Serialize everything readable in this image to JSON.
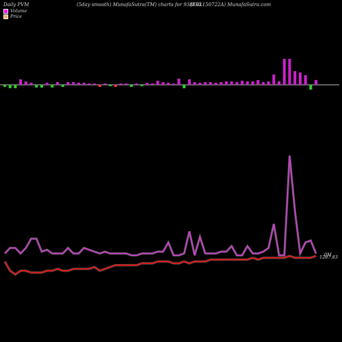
{
  "header": {
    "left": "Daily PVM",
    "center": "(5day smooth) MunafaSutra(TM) charts for 938103",
    "right": "(EBL150722A) MunafaSutra.com"
  },
  "legend": [
    {
      "label": "Volume",
      "color": "#ff00ff"
    },
    {
      "label": "Price",
      "color": "#ffaa66"
    }
  ],
  "chart_data": {
    "type": "line",
    "bar_colors": {
      "up": "#cc22cc",
      "down": "#33cc33",
      "neutral": "#ff3333"
    },
    "volume_bars": [
      {
        "value": 3,
        "dir": "down"
      },
      {
        "value": 5,
        "dir": "down"
      },
      {
        "value": 5,
        "dir": "down"
      },
      {
        "value": 8,
        "dir": "up"
      },
      {
        "value": 5,
        "dir": "up"
      },
      {
        "value": 3,
        "dir": "up"
      },
      {
        "value": 4,
        "dir": "down"
      },
      {
        "value": 4,
        "dir": "down"
      },
      {
        "value": 3,
        "dir": "up"
      },
      {
        "value": 4,
        "dir": "down"
      },
      {
        "value": 4,
        "dir": "up"
      },
      {
        "value": 3,
        "dir": "down"
      },
      {
        "value": 4,
        "dir": "up"
      },
      {
        "value": 4,
        "dir": "up"
      },
      {
        "value": 3,
        "dir": "up"
      },
      {
        "value": 3,
        "dir": "up"
      },
      {
        "value": 2,
        "dir": "up"
      },
      {
        "value": 2,
        "dir": "up"
      },
      {
        "value": 3,
        "dir": "neutral"
      },
      {
        "value": 2,
        "dir": "up"
      },
      {
        "value": 2,
        "dir": "down"
      },
      {
        "value": 3,
        "dir": "neutral"
      },
      {
        "value": 2,
        "dir": "up"
      },
      {
        "value": 2,
        "dir": "up"
      },
      {
        "value": 3,
        "dir": "down"
      },
      {
        "value": 2,
        "dir": "up"
      },
      {
        "value": 2,
        "dir": "down"
      },
      {
        "value": 3,
        "dir": "up"
      },
      {
        "value": 2,
        "dir": "up"
      },
      {
        "value": 6,
        "dir": "up"
      },
      {
        "value": 4,
        "dir": "up"
      },
      {
        "value": 3,
        "dir": "up"
      },
      {
        "value": 2,
        "dir": "up"
      },
      {
        "value": 9,
        "dir": "up"
      },
      {
        "value": 5,
        "dir": "down"
      },
      {
        "value": 8,
        "dir": "up"
      },
      {
        "value": 4,
        "dir": "up"
      },
      {
        "value": 3,
        "dir": "up"
      },
      {
        "value": 4,
        "dir": "up"
      },
      {
        "value": 4,
        "dir": "up"
      },
      {
        "value": 3,
        "dir": "up"
      },
      {
        "value": 4,
        "dir": "up"
      },
      {
        "value": 5,
        "dir": "up"
      },
      {
        "value": 5,
        "dir": "up"
      },
      {
        "value": 4,
        "dir": "up"
      },
      {
        "value": 6,
        "dir": "up"
      },
      {
        "value": 5,
        "dir": "up"
      },
      {
        "value": 5,
        "dir": "up"
      },
      {
        "value": 7,
        "dir": "up"
      },
      {
        "value": 4,
        "dir": "up"
      },
      {
        "value": 5,
        "dir": "up"
      },
      {
        "value": 15,
        "dir": "up"
      },
      {
        "value": 5,
        "dir": "up"
      },
      {
        "value": 38,
        "dir": "up"
      },
      {
        "value": 38,
        "dir": "up"
      },
      {
        "value": 20,
        "dir": "up"
      },
      {
        "value": 18,
        "dir": "up"
      },
      {
        "value": 14,
        "dir": "up"
      },
      {
        "value": 7,
        "dir": "down"
      },
      {
        "value": 7,
        "dir": "up"
      }
    ],
    "volume_line": [
      2,
      5,
      5,
      2,
      5,
      10,
      10,
      3,
      4,
      2,
      2,
      2,
      5,
      2,
      2,
      5,
      4,
      3,
      2,
      3,
      2,
      2,
      2,
      2,
      1,
      1,
      2,
      2,
      2,
      3,
      3,
      8,
      1,
      1,
      2,
      14,
      1,
      11,
      2,
      2,
      2,
      3,
      3,
      6,
      1,
      1,
      6,
      2,
      2,
      3,
      5,
      18,
      1,
      1,
      55,
      25,
      2,
      8,
      9,
      2
    ],
    "price_line": [
      1,
      -4,
      -6,
      -4,
      -4,
      -5,
      -5,
      -5,
      -4,
      -4,
      -3,
      -4,
      -4,
      -3,
      -3,
      -3,
      -3,
      -2,
      -4,
      -3,
      -2,
      -1,
      -1,
      -1,
      -1,
      -1,
      0,
      0,
      0,
      1,
      1,
      1,
      0,
      0,
      1,
      0,
      1,
      1,
      1,
      2,
      2,
      2,
      2,
      2,
      2,
      2,
      2,
      3,
      2,
      3,
      3,
      3,
      3,
      3,
      4,
      3,
      3,
      3,
      3,
      4
    ],
    "volume_label": "0M",
    "price_label": "1287.83"
  }
}
